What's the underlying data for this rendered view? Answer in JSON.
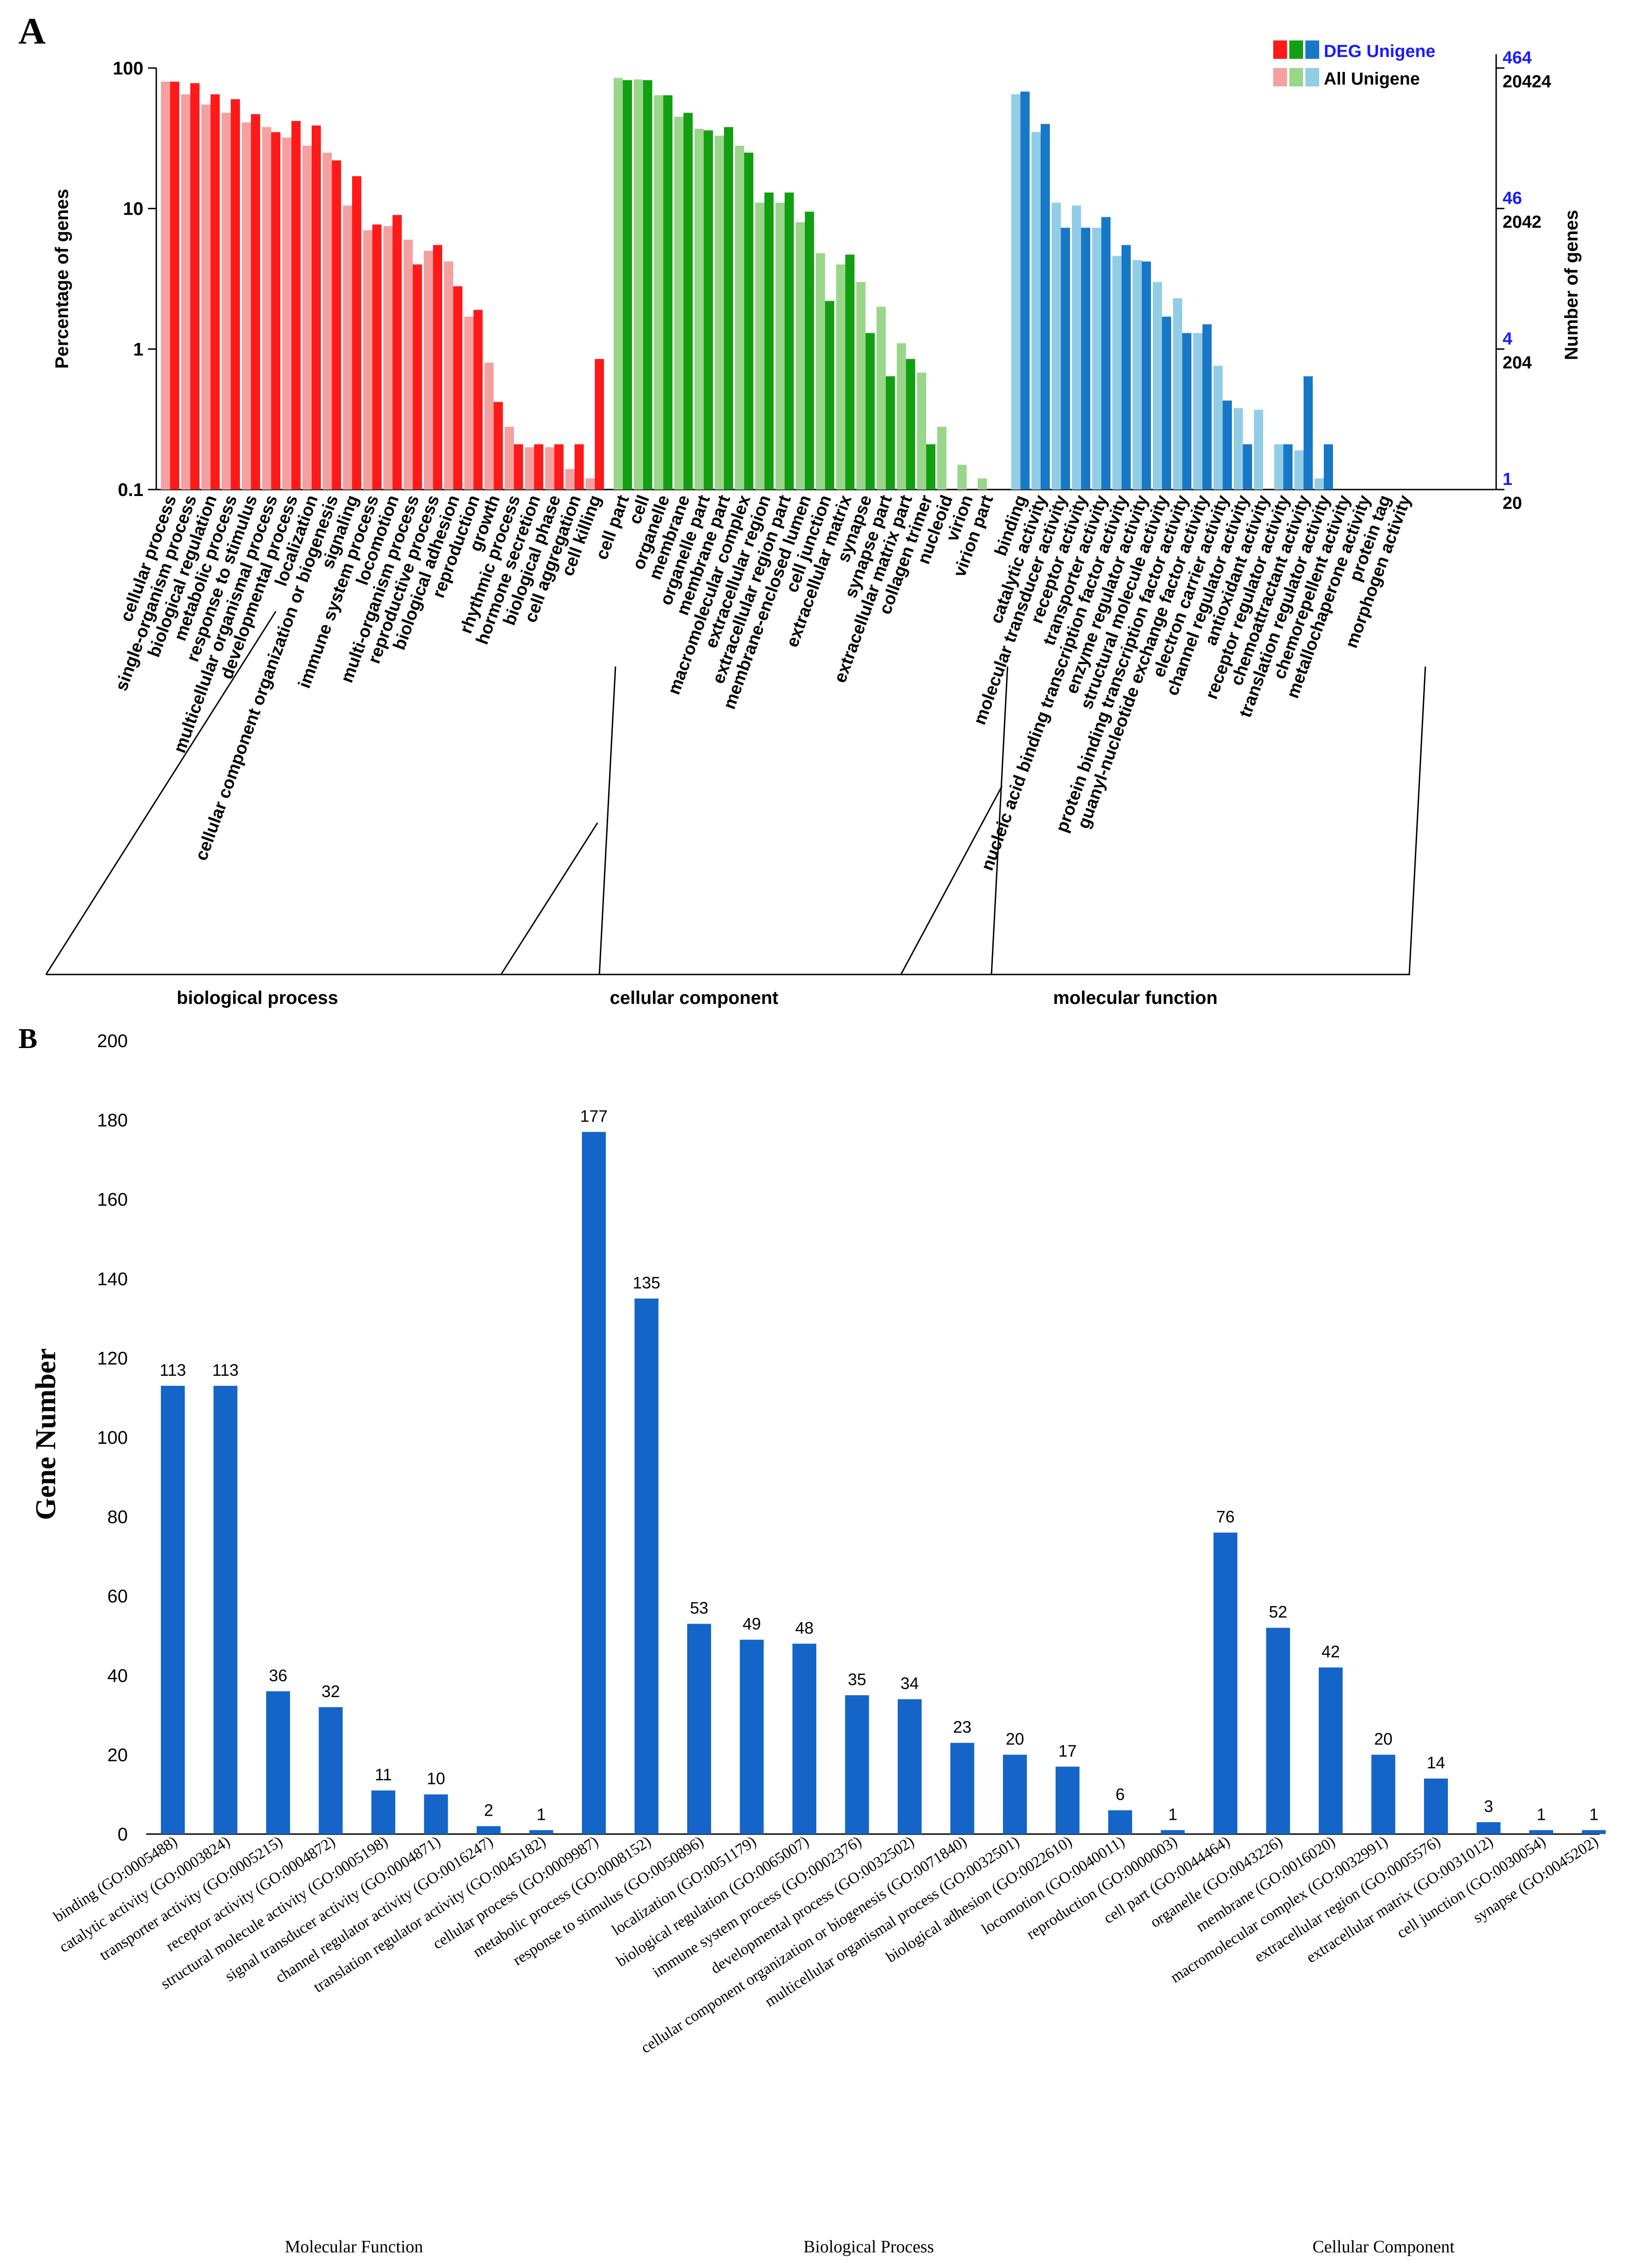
{
  "colors": {
    "deg_bp": "#ff1a1a",
    "all_bp": "#f5a0a0",
    "deg_cc": "#12a012",
    "all_cc": "#9ad68a",
    "deg_mf": "#1878c8",
    "all_mf": "#92cde6",
    "bar_b": "#1565c8",
    "axis": "#000000",
    "legend_blue": "#1a1aff"
  },
  "chart_data": [
    {
      "type": "bar",
      "panel_label": "A",
      "y_scale": "log",
      "ylabel": "Percentage of genes",
      "ylabel_right": "Number of genes",
      "ylim": [
        0.1,
        100
      ],
      "yticks": [
        "0.1",
        "1",
        "10",
        "100"
      ],
      "right_ticks_deg": [
        "464",
        "46",
        "4",
        "1"
      ],
      "right_ticks_all": [
        "20424",
        "2042",
        "204",
        "20"
      ],
      "legend": {
        "deg": "DEG Unigene",
        "all": "All Unigene"
      },
      "groups": [
        {
          "name": "biological process",
          "categories": [
            "cellular process",
            "single-organism process",
            "biological regulation",
            "metabolic process",
            "response to stimulus",
            "multicellular organismal process",
            "developmental process",
            "localization",
            "cellular component organization or biogenesis",
            "signaling",
            "immune system process",
            "locomotion",
            "multi-organism process",
            "reproductive process",
            "biological adhesion",
            "reproduction",
            "growth",
            "rhythmic process",
            "hormone secretion",
            "biological phase",
            "cell aggregation",
            "cell killing"
          ],
          "all": [
            80,
            65,
            55,
            48,
            41,
            38,
            32,
            28,
            25,
            10.5,
            7,
            7.5,
            6,
            5,
            4.2,
            1.7,
            0.8,
            0.28,
            0.2,
            0.2,
            0.14,
            0.12
          ],
          "deg": [
            80,
            78,
            65,
            60,
            47,
            35,
            42,
            39,
            22,
            17,
            7.7,
            9,
            4,
            5.5,
            2.8,
            1.9,
            0.42,
            0.21,
            0.21,
            0.21,
            0.21,
            0.85
          ]
        },
        {
          "name": "cellular component",
          "categories": [
            "cell part",
            "cell",
            "organelle",
            "membrane",
            "organelle part",
            "membrane part",
            "macromolecular complex",
            "extracellular region",
            "extracellular region part",
            "membrane-enclosed lumen",
            "cell junction",
            "extracellular matrix",
            "synapse",
            "synapse part",
            "extracellular matrix part",
            "collagen trimer",
            "nucleoid",
            "virion",
            "virion part"
          ],
          "all": [
            85,
            83,
            64,
            45,
            37,
            33,
            28,
            11,
            11,
            8,
            4.8,
            4,
            3,
            2,
            1.1,
            0.68,
            0.28,
            0.15,
            0.12
          ],
          "deg": [
            82,
            82,
            64,
            48,
            36,
            38,
            25,
            13,
            13,
            9.5,
            2.2,
            4.7,
            1.3,
            0.64,
            0.85,
            0.21,
            null,
            null,
            null
          ]
        },
        {
          "name": "molecular function",
          "categories": [
            "binding",
            "catalytic activity",
            "molecular transducer activity",
            "receptor activity",
            "transporter activity",
            "nucleic acid binding transcription factor activity",
            "enzyme regulator activity",
            "structural molecule activity",
            "protein binding transcription factor activity",
            "guanyl-nucleotide exchange factor activity",
            "electron carrier activity",
            "channel regulator activity",
            "antioxidant activity",
            "receptor regulator activity",
            "chemoattractant activity",
            "translation regulator activity",
            "chemorepellent activity",
            "metallochaperone activity",
            "protein tag",
            "morphogen activity"
          ],
          "all": [
            65,
            35,
            11,
            10.5,
            7.3,
            4.6,
            4.3,
            3,
            2.3,
            1.3,
            0.76,
            0.38,
            0.37,
            0.21,
            0.19,
            0.12,
            null,
            null,
            null,
            null
          ],
          "deg": [
            68,
            40,
            7.3,
            7.3,
            8.7,
            5.5,
            4.2,
            1.7,
            1.3,
            1.5,
            0.43,
            0.21,
            null,
            0.21,
            0.64,
            0.21,
            null,
            null,
            null,
            null
          ]
        }
      ]
    },
    {
      "type": "bar",
      "panel_label": "B",
      "ylabel": "Gene Number",
      "ylim": [
        0,
        200
      ],
      "yticks": [
        "0",
        "20",
        "40",
        "60",
        "80",
        "100",
        "120",
        "140",
        "160",
        "180",
        "200"
      ],
      "groups": [
        {
          "name": "Molecular Function",
          "categories": [
            "binding (GO:0005488)",
            "catalytic activity (GO:0003824)",
            "transporter activity (GO:0005215)",
            "receptor activity (GO:0004872)",
            "structural molecule activity (GO:0005198)",
            "signal transducer activity (GO:0004871)",
            "channel regulator activity (GO:0016247)",
            "translation regulator activity (GO:0045182)"
          ],
          "values": [
            113,
            113,
            36,
            32,
            11,
            10,
            2,
            1
          ]
        },
        {
          "name": "Biological Process",
          "categories": [
            "cellular process (GO:0009987)",
            "metabolic process (GO:0008152)",
            "response to stimulus (GO:0050896)",
            "localization (GO:0051179)",
            "biological regulation (GO:0065007)",
            "immune system process (GO:0002376)",
            "developmental process (GO:0032502)",
            "cellular component organization or biogenesis (GO:0071840)",
            "multicellular organismal process (GO:0032501)",
            "biological adhesion (GO:0022610)",
            "locomotion (GO:0040011)",
            "reproduction (GO:0000003)"
          ],
          "values": [
            177,
            135,
            53,
            49,
            48,
            35,
            34,
            23,
            20,
            17,
            6,
            1
          ]
        },
        {
          "name": "Cellular Component",
          "categories": [
            "cell part (GO:0044464)",
            "organelle (GO:0043226)",
            "membrane (GO:0016020)",
            "macromolecular complex (GO:0032991)",
            "extracellular region (GO:0005576)",
            "extracellular matrix (GO:0031012)",
            "cell junction (GO:0030054)",
            "synapse (GO:0045202)"
          ],
          "values": [
            76,
            52,
            42,
            20,
            14,
            3,
            1,
            1
          ]
        }
      ]
    }
  ]
}
